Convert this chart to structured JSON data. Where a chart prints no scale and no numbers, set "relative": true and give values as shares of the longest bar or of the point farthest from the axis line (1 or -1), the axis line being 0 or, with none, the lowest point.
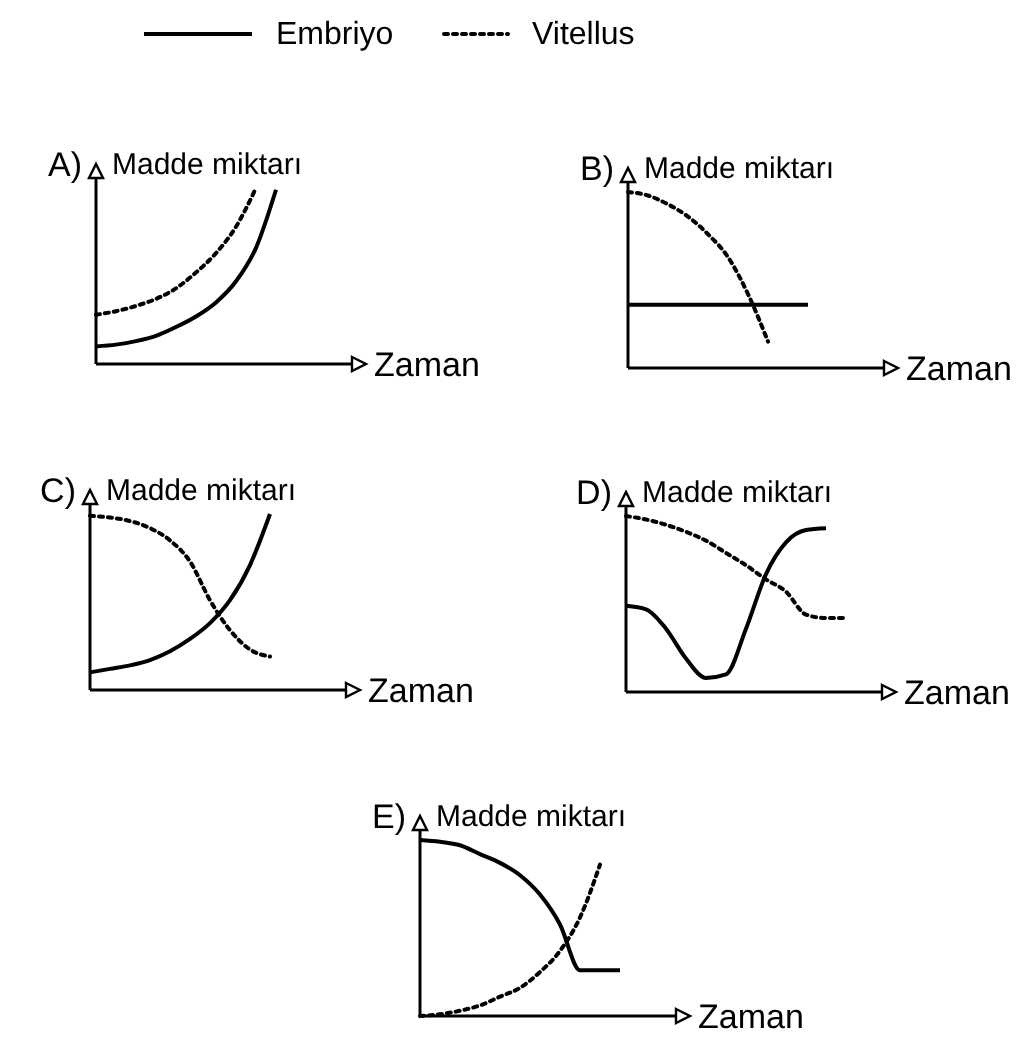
{
  "chart_data": [
    {
      "type": "line",
      "title": "A)",
      "ylabel": "Madde miktarı",
      "xlabel": "Zaman",
      "relative": true,
      "legend": "top",
      "categories": [
        null,
        null,
        null,
        null,
        null,
        null,
        null,
        null,
        null,
        null,
        null,
        null,
        null
      ],
      "series": [
        {
          "name": "Embriyo",
          "color": "#000000",
          "line_style": "solid",
          "values": [
            0.1,
            0.11,
            0.13,
            0.16,
            0.21,
            0.27,
            0.35,
            0.47,
            0.66,
            0.99,
            null,
            null,
            null
          ]
        },
        {
          "name": "Vitellus",
          "color": "#000000",
          "line_style": "dotted",
          "values": [
            0.28,
            0.3,
            0.33,
            0.37,
            0.43,
            0.52,
            0.63,
            0.78,
            1,
            null,
            null,
            null,
            null
          ]
        }
      ]
    },
    {
      "type": "line",
      "title": "B)",
      "ylabel": "Madde miktarı",
      "xlabel": "Zaman",
      "relative": true,
      "categories": [
        null,
        null,
        null,
        null,
        null,
        null,
        null,
        null,
        null,
        null,
        null,
        null,
        null
      ],
      "series": [
        {
          "color": "#000000",
          "line_style": "solid",
          "values": [
            0.36,
            0.36,
            0.36,
            0.36,
            0.36,
            0.36,
            0.36,
            0.36,
            0.36,
            0.36,
            null,
            null,
            null
          ]
        },
        {
          "color": "#000000",
          "line_style": "dotted",
          "values": [
            1,
            0.98,
            0.93,
            0.86,
            0.76,
            0.63,
            0.42,
            0.15,
            null,
            null,
            null,
            null,
            null
          ]
        }
      ]
    },
    {
      "type": "line",
      "title": "C)",
      "ylabel": "Madde miktarı",
      "xlabel": "Zaman",
      "relative": true,
      "categories": [
        null,
        null,
        null,
        null,
        null,
        null,
        null,
        null,
        null,
        null,
        null,
        null,
        null
      ],
      "series": [
        {
          "color": "#000000",
          "line_style": "solid",
          "values": [
            0.1,
            0.12,
            0.14,
            0.17,
            0.22,
            0.29,
            0.38,
            0.51,
            0.71,
            1,
            null,
            null,
            null
          ]
        },
        {
          "color": "#000000",
          "line_style": "dotted",
          "values": [
            0.99,
            0.98,
            0.96,
            0.92,
            0.85,
            0.73,
            0.51,
            0.34,
            0.23,
            0.19,
            null,
            null,
            null
          ]
        }
      ]
    },
    {
      "type": "line",
      "title": "D)",
      "ylabel": "Madde miktarı",
      "xlabel": "Zaman",
      "relative": true,
      "categories": [
        null,
        null,
        null,
        null,
        null,
        null,
        null,
        null,
        null,
        null,
        null,
        null,
        null
      ],
      "series": [
        {
          "color": "#000000",
          "line_style": "solid",
          "values": [
            0.49,
            0.47,
            0.36,
            0.19,
            0.08,
            0.1,
            0.36,
            0.67,
            0.85,
            0.92,
            0.93,
            null,
            null
          ]
        },
        {
          "color": "#000000",
          "line_style": "dotted",
          "values": [
            1,
            0.98,
            0.95,
            0.91,
            0.86,
            0.79,
            0.72,
            0.64,
            0.57,
            0.44,
            0.42,
            0.42,
            null
          ]
        }
      ]
    },
    {
      "type": "line",
      "title": "E)",
      "ylabel": "Madde miktarı",
      "xlabel": "Zaman",
      "relative": true,
      "categories": [
        null,
        null,
        null,
        null,
        null,
        null,
        null,
        null,
        null,
        null,
        null,
        null,
        null
      ],
      "series": [
        {
          "color": "#000000",
          "line_style": "solid",
          "values": [
            1,
            0.99,
            0.97,
            0.92,
            0.87,
            0.8,
            0.69,
            0.52,
            0.26,
            0.26,
            0.26,
            null,
            null
          ]
        },
        {
          "color": "#000000",
          "line_style": "dotted",
          "values": [
            0,
            0.01,
            0.03,
            0.06,
            0.11,
            0.16,
            0.25,
            0.37,
            0.56,
            0.86,
            null,
            null,
            null
          ]
        }
      ]
    }
  ]
}
